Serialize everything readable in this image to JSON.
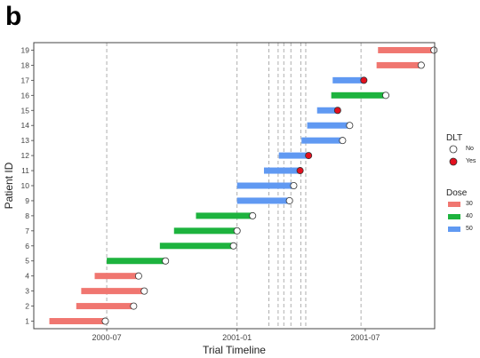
{
  "panel_label": "b",
  "chart_data": {
    "type": "gantt",
    "xlabel": "Trial Timeline",
    "ylabel": "Patient ID",
    "x_ticks": [
      "2000-07-01",
      "2001-01-01",
      "2001-07-01"
    ],
    "x_tick_labels": [
      "2000-07",
      "2001-01",
      "2001-07"
    ],
    "xlim": [
      "2000-03-20",
      "2001-10-07"
    ],
    "ylim": [
      0.5,
      19.5
    ],
    "y_ticks": [
      1,
      2,
      3,
      4,
      5,
      6,
      7,
      8,
      9,
      10,
      11,
      12,
      13,
      14,
      15,
      16,
      17,
      18,
      19
    ],
    "grid": false,
    "reference_lines": [
      "2000-07-01",
      "2001-01-01",
      "2001-02-15",
      "2001-02-28",
      "2001-03-08",
      "2001-03-18",
      "2001-04-01",
      "2001-04-08",
      "2001-06-25"
    ],
    "legend_position": "right",
    "dose_colors": {
      "30": "#f07670",
      "40": "#1db33e",
      "50": "#6099f2"
    },
    "dlt_colors": {
      "No": "#ffffff",
      "Yes": "#e3101e"
    },
    "patients": [
      {
        "id": 1,
        "start": "2000-04-11",
        "end": "2000-06-29",
        "dose": "30",
        "dlt": "No"
      },
      {
        "id": 2,
        "start": "2000-05-19",
        "end": "2000-08-08",
        "dose": "30",
        "dlt": "No"
      },
      {
        "id": 3,
        "start": "2000-05-26",
        "end": "2000-08-23",
        "dose": "30",
        "dlt": "No"
      },
      {
        "id": 4,
        "start": "2000-06-14",
        "end": "2000-08-15",
        "dose": "30",
        "dlt": "No"
      },
      {
        "id": 5,
        "start": "2000-07-01",
        "end": "2000-09-22",
        "dose": "40",
        "dlt": "No"
      },
      {
        "id": 6,
        "start": "2000-09-14",
        "end": "2000-12-27",
        "dose": "40",
        "dlt": "No"
      },
      {
        "id": 7,
        "start": "2000-10-04",
        "end": "2001-01-01",
        "dose": "40",
        "dlt": "No"
      },
      {
        "id": 8,
        "start": "2000-11-04",
        "end": "2001-01-23",
        "dose": "40",
        "dlt": "No"
      },
      {
        "id": 9,
        "start": "2001-01-01",
        "end": "2001-03-16",
        "dose": "50",
        "dlt": "No"
      },
      {
        "id": 10,
        "start": "2001-01-01",
        "end": "2001-03-22",
        "dose": "50",
        "dlt": "No"
      },
      {
        "id": 11,
        "start": "2001-02-08",
        "end": "2001-03-31",
        "dose": "50",
        "dlt": "Yes"
      },
      {
        "id": 12,
        "start": "2001-03-01",
        "end": "2001-04-12",
        "dose": "50",
        "dlt": "Yes"
      },
      {
        "id": 13,
        "start": "2001-04-02",
        "end": "2001-05-30",
        "dose": "50",
        "dlt": "No"
      },
      {
        "id": 14,
        "start": "2001-04-10",
        "end": "2001-06-09",
        "dose": "50",
        "dlt": "No"
      },
      {
        "id": 15,
        "start": "2001-04-24",
        "end": "2001-05-23",
        "dose": "50",
        "dlt": "Yes"
      },
      {
        "id": 16,
        "start": "2001-05-14",
        "end": "2001-07-30",
        "dose": "40",
        "dlt": "No"
      },
      {
        "id": 17,
        "start": "2001-05-16",
        "end": "2001-06-29",
        "dose": "50",
        "dlt": "Yes"
      },
      {
        "id": 18,
        "start": "2001-07-17",
        "end": "2001-09-18",
        "dose": "30",
        "dlt": "No"
      },
      {
        "id": 19,
        "start": "2001-07-19",
        "end": "2001-10-06",
        "dose": "30",
        "dlt": "No"
      }
    ]
  },
  "legend": {
    "dlt": {
      "title": "DLT",
      "items": [
        {
          "label": "No",
          "color": "#ffffff"
        },
        {
          "label": "Yes",
          "color": "#e3101e"
        }
      ]
    },
    "dose": {
      "title": "Dose",
      "items": [
        {
          "label": "30",
          "color": "#f07670"
        },
        {
          "label": "40",
          "color": "#1db33e"
        },
        {
          "label": "50",
          "color": "#6099f2"
        }
      ]
    }
  }
}
